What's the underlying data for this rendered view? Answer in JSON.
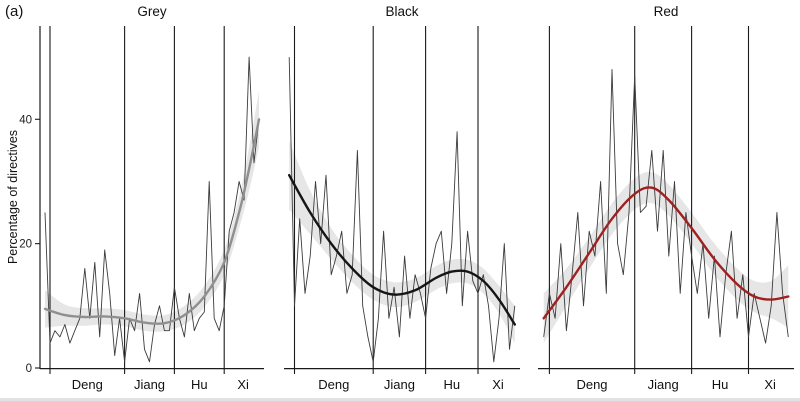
{
  "figure_label": "(a)",
  "ylabel": "Percentage of directives",
  "chart_data": {
    "type": "line",
    "title": "",
    "x_years": {
      "start": 1977,
      "end": 2020
    },
    "x_range": [
      1976,
      2021
    ],
    "ylim": [
      0,
      55
    ],
    "yticks": [
      0,
      20,
      40
    ],
    "grid": false,
    "legend": "none",
    "era_lines": [
      1978,
      1993,
      2003,
      2013
    ],
    "era_labels": [
      {
        "label": "Deng",
        "x": 1985.5
      },
      {
        "label": "Jiang",
        "x": 1998
      },
      {
        "label": "Hu",
        "x": 2008
      },
      {
        "label": "Xi",
        "x": 2016.8
      }
    ],
    "band_color": "#e0e0e0",
    "raw_color": "#3c3c3c",
    "axis_color": "#1a1a1a",
    "panels": [
      {
        "title": "Grey",
        "line_color": "#8f8f8f",
        "raw": [
          25,
          4,
          6,
          5,
          7,
          4,
          6,
          8,
          16,
          8,
          17,
          5,
          19,
          12,
          2,
          8,
          1,
          8,
          6,
          12,
          3,
          1,
          7,
          10,
          6,
          6,
          13,
          8,
          5,
          12,
          6,
          8,
          9,
          30,
          8,
          6,
          10,
          22,
          25,
          30,
          27,
          50,
          33,
          40
        ],
        "smooth": {
          "x": [
            1977,
            1981,
            1985,
            1989,
            1993,
            1997,
            2001,
            2005,
            2009,
            2013,
            2016,
            2018,
            2020
          ],
          "y": [
            9.5,
            8.5,
            8.2,
            8.3,
            8,
            7.3,
            7.2,
            8.5,
            11.5,
            17,
            25,
            32,
            40
          ],
          "lower": [
            6.5,
            6.8,
            6.8,
            7,
            6.7,
            6,
            5.9,
            7,
            9.8,
            15,
            22.5,
            28.5,
            35.5
          ],
          "upper": [
            12.5,
            10.2,
            9.6,
            9.6,
            9.3,
            8.6,
            8.5,
            10,
            13.2,
            19,
            27.5,
            35.5,
            44.5
          ]
        }
      },
      {
        "title": "Black",
        "line_color": "#151515",
        "raw": [
          50,
          10,
          24,
          12,
          18,
          30,
          20,
          31,
          15,
          18,
          22,
          12,
          15,
          35,
          10,
          5,
          1,
          8,
          22,
          8,
          13,
          5,
          18,
          8,
          15,
          12,
          8,
          16,
          20,
          22,
          12,
          20,
          38,
          10,
          22,
          14,
          12,
          15,
          10,
          1,
          8,
          20,
          3,
          10
        ],
        "smooth": {
          "x": [
            1977,
            1981,
            1985,
            1989,
            1993,
            1997,
            2001,
            2005,
            2008,
            2011,
            2014,
            2017,
            2020
          ],
          "y": [
            31,
            25,
            20,
            16,
            13,
            11.8,
            12.5,
            14.5,
            15.5,
            15.5,
            14,
            11,
            7
          ],
          "lower": [
            25.5,
            21.5,
            17.5,
            13.8,
            11,
            9.8,
            10.6,
            12.6,
            13.6,
            13.6,
            12,
            8.8,
            4
          ],
          "upper": [
            36.5,
            28.5,
            22.5,
            18.2,
            15,
            13.8,
            14.4,
            16.4,
            17.4,
            17.4,
            16,
            13.2,
            10
          ]
        }
      },
      {
        "title": "Red",
        "line_color": "#9e2020",
        "raw": [
          5,
          12,
          8,
          20,
          6,
          15,
          25,
          10,
          22,
          18,
          30,
          12,
          48,
          20,
          15,
          25,
          47,
          25,
          26,
          35,
          22,
          35,
          18,
          30,
          12,
          25,
          18,
          12,
          20,
          8,
          18,
          5,
          15,
          22,
          8,
          15,
          5,
          12,
          8,
          4,
          10,
          25,
          12,
          5
        ],
        "smooth": {
          "x": [
            1977,
            1981,
            1985,
            1989,
            1993,
            1996,
            1999,
            2003,
            2007,
            2011,
            2014,
            2017,
            2020
          ],
          "y": [
            8,
            13,
            18.5,
            24,
            28,
            29,
            27,
            22.5,
            17.5,
            13.5,
            11.5,
            11,
            11.5
          ],
          "lower": [
            4,
            10,
            16,
            21.5,
            25.5,
            26.5,
            24.5,
            20,
            15,
            11,
            9,
            8,
            6.5
          ],
          "upper": [
            12,
            16,
            21,
            26.5,
            30.5,
            31.5,
            29.5,
            25,
            20,
            16,
            14,
            14,
            16.5
          ]
        }
      }
    ]
  }
}
